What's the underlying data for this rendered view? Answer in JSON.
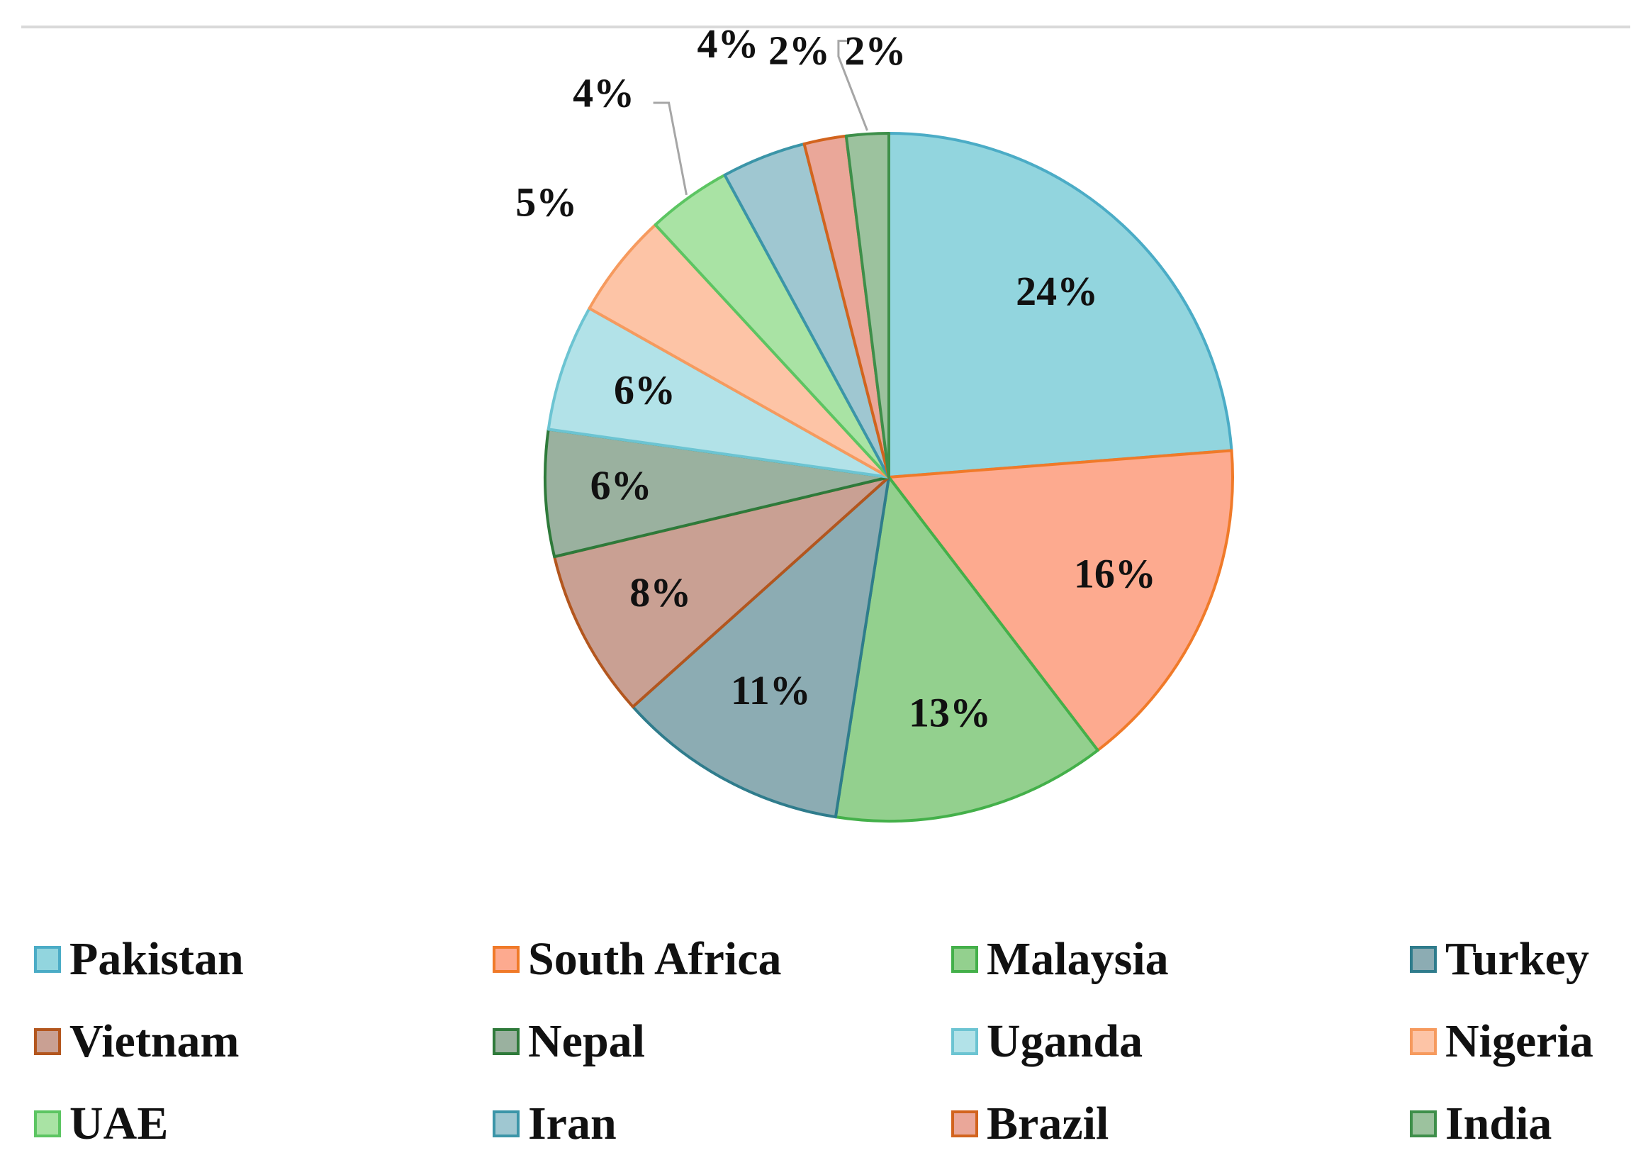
{
  "chart_data": {
    "type": "pie",
    "title": "",
    "legend_position": "bottom",
    "slices": [
      {
        "label": "Pakistan",
        "value": 24,
        "value_label": "24%",
        "fill": "#92D5DE",
        "stroke": "#4BACC6"
      },
      {
        "label": "South Africa",
        "value": 16,
        "value_label": "16%",
        "fill": "#FDAA8F",
        "stroke": "#F07A29"
      },
      {
        "label": "Malaysia",
        "value": 13,
        "value_label": "13%",
        "fill": "#93D08E",
        "stroke": "#44B04A"
      },
      {
        "label": "Turkey",
        "value": 11,
        "value_label": "11%",
        "fill": "#8CACB3",
        "stroke": "#2F7C8C"
      },
      {
        "label": "Vietnam",
        "value": 8,
        "value_label": "8%",
        "fill": "#C9A093",
        "stroke": "#B3561E"
      },
      {
        "label": "Nepal",
        "value": 6,
        "value_label": "6%",
        "fill": "#9AB19F",
        "stroke": "#2E7A3A"
      },
      {
        "label": "Uganda",
        "value": 6,
        "value_label": "6%",
        "fill": "#B2E2E8",
        "stroke": "#6CC4D2"
      },
      {
        "label": "Nigeria",
        "value": 5,
        "value_label": "5%",
        "fill": "#FDC4A6",
        "stroke": "#F69A5E"
      },
      {
        "label": "UAE",
        "value": 4,
        "value_label": "4%",
        "fill": "#A9E3A4",
        "stroke": "#5CC562"
      },
      {
        "label": "Iran",
        "value": 4,
        "value_label": "4%",
        "fill": "#9FC7D1",
        "stroke": "#3B95A8"
      },
      {
        "label": "Brazil",
        "value": 2,
        "value_label": "2%",
        "fill": "#EAA799",
        "stroke": "#D2641E"
      },
      {
        "label": "India",
        "value": 2,
        "value_label": "2%",
        "fill": "#9CC29E",
        "stroke": "#3E8F4A"
      }
    ]
  }
}
